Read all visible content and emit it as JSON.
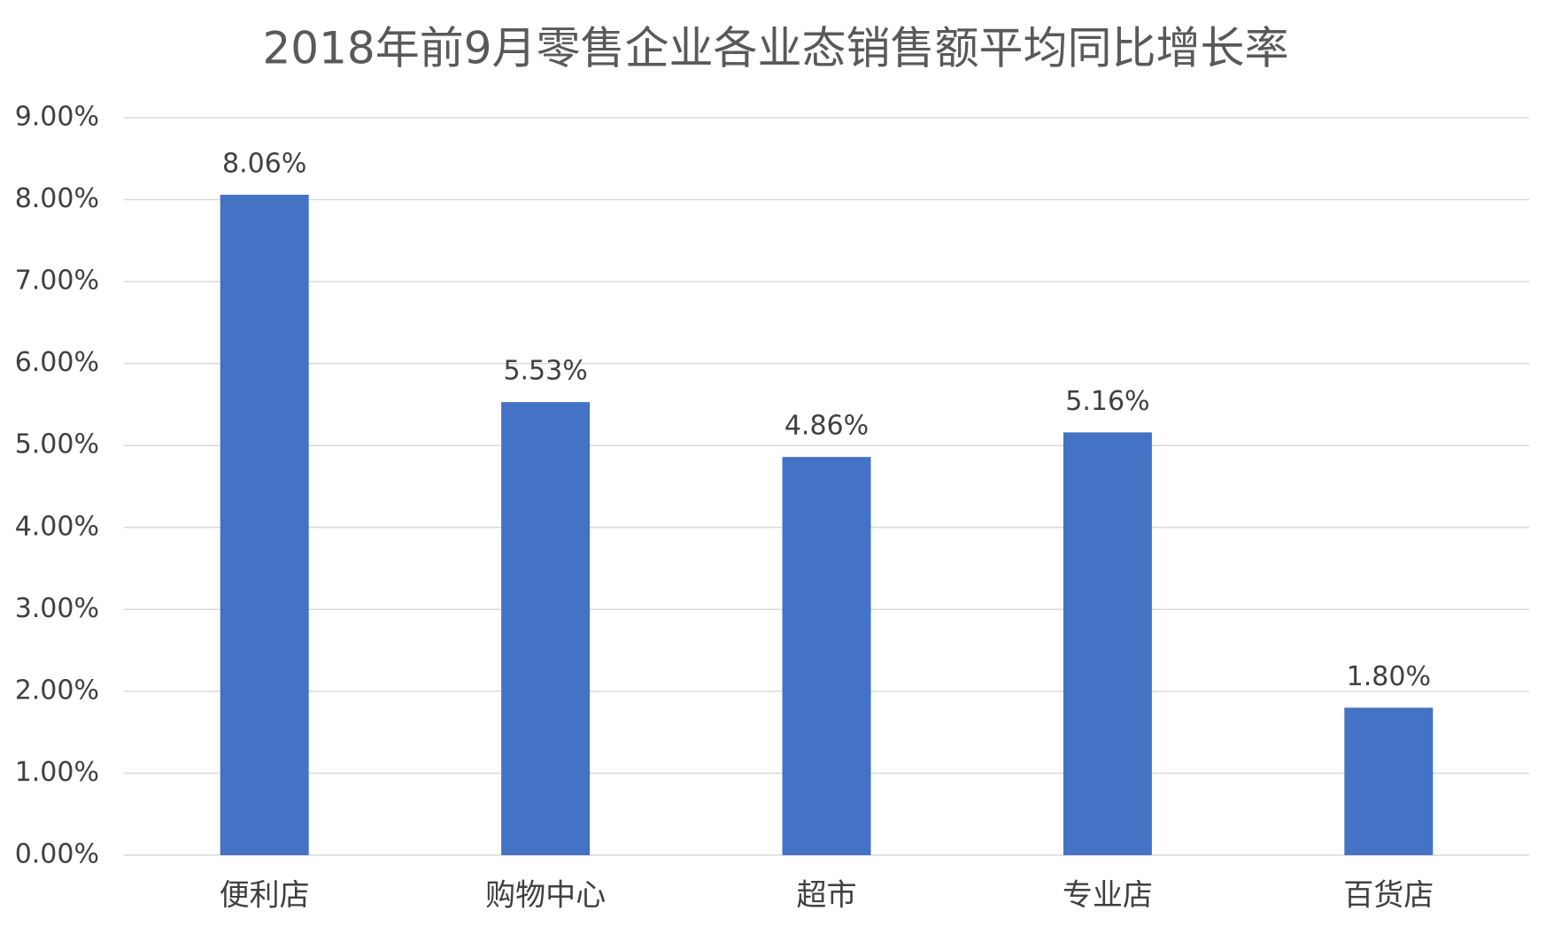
{
  "chart_data": {
    "type": "bar",
    "title": "2018年前9月零售企业各业态销售额平均同比增长率",
    "categories": [
      "便利店",
      "购物中心",
      "超市",
      "专业店",
      "百货店"
    ],
    "values": [
      8.06,
      5.53,
      4.86,
      5.16,
      1.8
    ],
    "value_labels": [
      "8.06%",
      "5.53%",
      "4.86%",
      "5.16%",
      "1.80%"
    ],
    "color": "#4472c4",
    "ylim": [
      0,
      9
    ],
    "yticks": [
      {
        "value": 0,
        "label": "0.00%"
      },
      {
        "value": 1,
        "label": "1.00%"
      },
      {
        "value": 2,
        "label": "2.00%"
      },
      {
        "value": 3,
        "label": "3.00%"
      },
      {
        "value": 4,
        "label": "4.00%"
      },
      {
        "value": 5,
        "label": "5.00%"
      },
      {
        "value": 6,
        "label": "6.00%"
      },
      {
        "value": 7,
        "label": "7.00%"
      },
      {
        "value": 8,
        "label": "8.00%"
      },
      {
        "value": 9,
        "label": "9.00%"
      }
    ],
    "grid": true
  }
}
